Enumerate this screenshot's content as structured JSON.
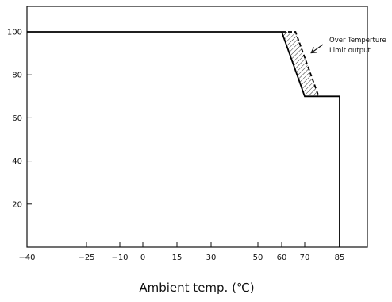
{
  "chart_data": {
    "type": "line",
    "title": "",
    "xlabel": "Ambient temp. (℃)",
    "ylabel": "",
    "x_ticks": [
      -40,
      -25,
      -10,
      0,
      15,
      30,
      50,
      60,
      70,
      85
    ],
    "x_tick_labels": [
      "−40",
      "−25",
      "−10",
      "0",
      "15",
      "30",
      "50",
      "60",
      "70",
      "85"
    ],
    "y_ticks": [
      20,
      40,
      60,
      80,
      100
    ],
    "y_tick_labels": [
      "20",
      "40",
      "60",
      "80",
      "100"
    ],
    "ylim": [
      0,
      112
    ],
    "grid": false,
    "legend": "none",
    "series": [
      {
        "style": "solid",
        "color": "#000000",
        "points": [
          [
            -40,
            100
          ],
          [
            60,
            100
          ],
          [
            70,
            70
          ],
          [
            85,
            70
          ],
          [
            85,
            0
          ]
        ]
      },
      {
        "style": "dashed",
        "color": "#000000",
        "points": [
          [
            60,
            100
          ],
          [
            66,
            100
          ],
          [
            76,
            70
          ]
        ]
      }
    ],
    "shaded_region": {
      "pattern": "hatched",
      "points": [
        [
          60,
          100
        ],
        [
          66,
          100
        ],
        [
          76,
          70
        ],
        [
          70,
          70
        ]
      ]
    },
    "annotations": [
      {
        "lines": [
          "Over Temperture",
          "Limit output"
        ],
        "arrow": true
      }
    ]
  }
}
